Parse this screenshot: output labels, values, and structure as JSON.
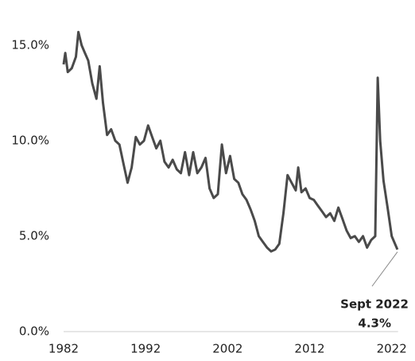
{
  "chart_data": {
    "type": "line",
    "x": [
      1982.0,
      1982.2,
      1982.5,
      1983.0,
      1983.5,
      1983.8,
      1984.2,
      1984.6,
      1985.0,
      1985.5,
      1986.0,
      1986.4,
      1986.8,
      1987.3,
      1987.8,
      1988.3,
      1988.8,
      1989.3,
      1989.8,
      1990.3,
      1990.8,
      1991.3,
      1991.8,
      1992.3,
      1992.8,
      1993.3,
      1993.8,
      1994.3,
      1994.8,
      1995.3,
      1995.8,
      1996.3,
      1996.8,
      1997.3,
      1997.8,
      1998.3,
      1998.8,
      1999.3,
      1999.8,
      2000.3,
      2000.8,
      2001.3,
      2001.8,
      2002.3,
      2002.8,
      2003.3,
      2003.8,
      2004.3,
      2004.8,
      2005.3,
      2005.8,
      2006.3,
      2006.8,
      2007.3,
      2007.8,
      2008.3,
      2008.8,
      2009.3,
      2009.8,
      2010.3,
      2010.6,
      2011.0,
      2011.5,
      2012.0,
      2012.5,
      2013.0,
      2013.5,
      2014.0,
      2014.5,
      2015.0,
      2015.5,
      2016.0,
      2016.5,
      2017.0,
      2017.5,
      2018.0,
      2018.5,
      2019.0,
      2019.5,
      2020.0,
      2020.3,
      2020.6,
      2021.0,
      2021.5,
      2022.0,
      2022.7
    ],
    "series": [
      {
        "color": "#4a4a4a",
        "values": [
          14.0,
          14.6,
          13.6,
          13.8,
          14.4,
          15.7,
          15.0,
          14.6,
          14.2,
          13.0,
          12.2,
          13.9,
          12.0,
          10.3,
          10.6,
          10.0,
          9.8,
          8.8,
          7.8,
          8.6,
          10.2,
          9.8,
          10.0,
          10.8,
          10.2,
          9.6,
          10.0,
          8.9,
          8.6,
          9.0,
          8.5,
          8.3,
          9.4,
          8.2,
          9.4,
          8.3,
          8.6,
          9.1,
          7.5,
          7.0,
          7.2,
          9.8,
          8.3,
          9.2,
          8.0,
          7.8,
          7.2,
          6.9,
          6.4,
          5.8,
          5.0,
          4.7,
          4.4,
          4.2,
          4.3,
          4.6,
          6.2,
          8.2,
          7.8,
          7.4,
          8.6,
          7.3,
          7.5,
          7.0,
          6.9,
          6.6,
          6.3,
          6.0,
          6.2,
          5.8,
          6.5,
          5.9,
          5.3,
          4.9,
          5.0,
          4.7,
          5.0,
          4.4,
          4.8,
          5.0,
          13.3,
          10.0,
          7.9,
          6.5,
          5.0,
          4.3
        ]
      }
    ],
    "xlim": [
      1982,
      2023
    ],
    "xticks": [
      1982,
      1992,
      2002,
      2012,
      2022
    ],
    "ylim": [
      0,
      16
    ],
    "yticks": [
      {
        "value": 0,
        "label": "0.0%"
      },
      {
        "value": 5,
        "label": "5.0%"
      },
      {
        "value": 10,
        "label": "10.0%"
      },
      {
        "value": 15,
        "label": "15.0%"
      }
    ],
    "annotations": [
      "Sept 2022",
      "4.3%"
    ]
  }
}
